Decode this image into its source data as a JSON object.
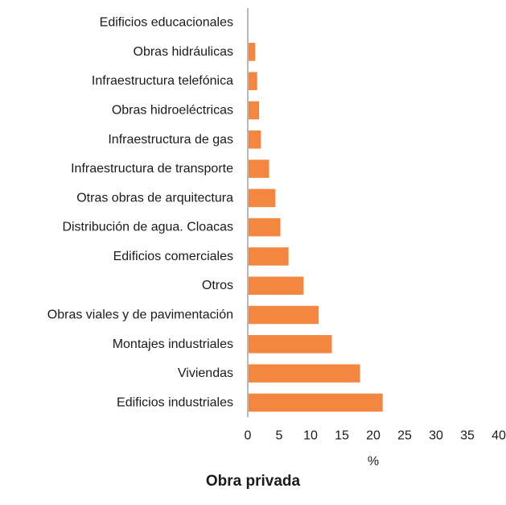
{
  "chart_data": {
    "type": "bar",
    "orientation": "horizontal",
    "title": "Obra privada",
    "xlabel": "%",
    "ylabel": "",
    "xlim": [
      0,
      40
    ],
    "xticks": [
      0,
      5,
      10,
      15,
      20,
      25,
      30,
      35,
      40
    ],
    "grid": false,
    "legend": "none",
    "bar_color": "#f4873f",
    "categories": [
      "Edificios educacionales",
      "Obras hidráulicas",
      "Infraestructura telefónica",
      "Obras hidroeléctricas",
      "Infraestructura de gas",
      "Infraestructura de transporte",
      "Otras obras de arquitectura",
      "Distribución de agua. Cloacas",
      "Edificios comerciales",
      "Otros",
      "Obras viales y de pavimentación",
      "Montajes industriales",
      "Viviendas",
      "Edificios industriales"
    ],
    "values": [
      0,
      1.2,
      1.5,
      1.8,
      2.1,
      3.4,
      4.4,
      5.2,
      6.5,
      8.9,
      11.3,
      13.4,
      17.9,
      21.5
    ]
  }
}
